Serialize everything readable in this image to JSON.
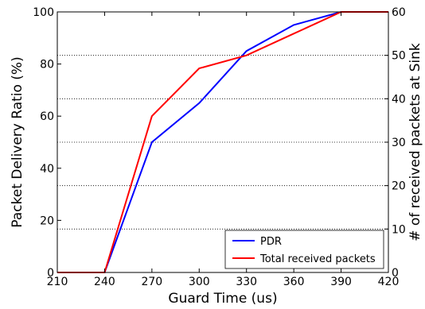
{
  "chart_data": {
    "type": "line",
    "x": [
      210,
      240,
      270,
      300,
      330,
      360,
      390,
      420
    ],
    "xlabel": "Guard Time (us)",
    "xlim": [
      210,
      420
    ],
    "xticks": [
      "210",
      "240",
      "270",
      "300",
      "330",
      "360",
      "390",
      "420"
    ],
    "ylabel_left": "Packet Delivery Ratio (%)",
    "ylim_left": [
      0,
      100
    ],
    "yticks_left": [
      "0",
      "20",
      "40",
      "60",
      "80",
      "100"
    ],
    "ylabel_right": "# of received packets at Sink",
    "ylim_right": [
      0,
      60
    ],
    "yticks_right": [
      "0",
      "10",
      "20",
      "30",
      "40",
      "50",
      "60"
    ],
    "grid": "horizontal dotted (right axis ticks)",
    "legend_position": "bottom-right",
    "series": [
      {
        "name": "PDR",
        "axis": "left",
        "color": "#0000ff",
        "values": [
          0,
          0,
          50,
          65,
          85,
          95,
          100,
          100
        ]
      },
      {
        "name": "Total received packets",
        "axis": "right",
        "color": "#ff0000",
        "values": [
          0,
          0,
          36,
          47,
          50,
          55,
          60,
          60
        ]
      }
    ]
  }
}
